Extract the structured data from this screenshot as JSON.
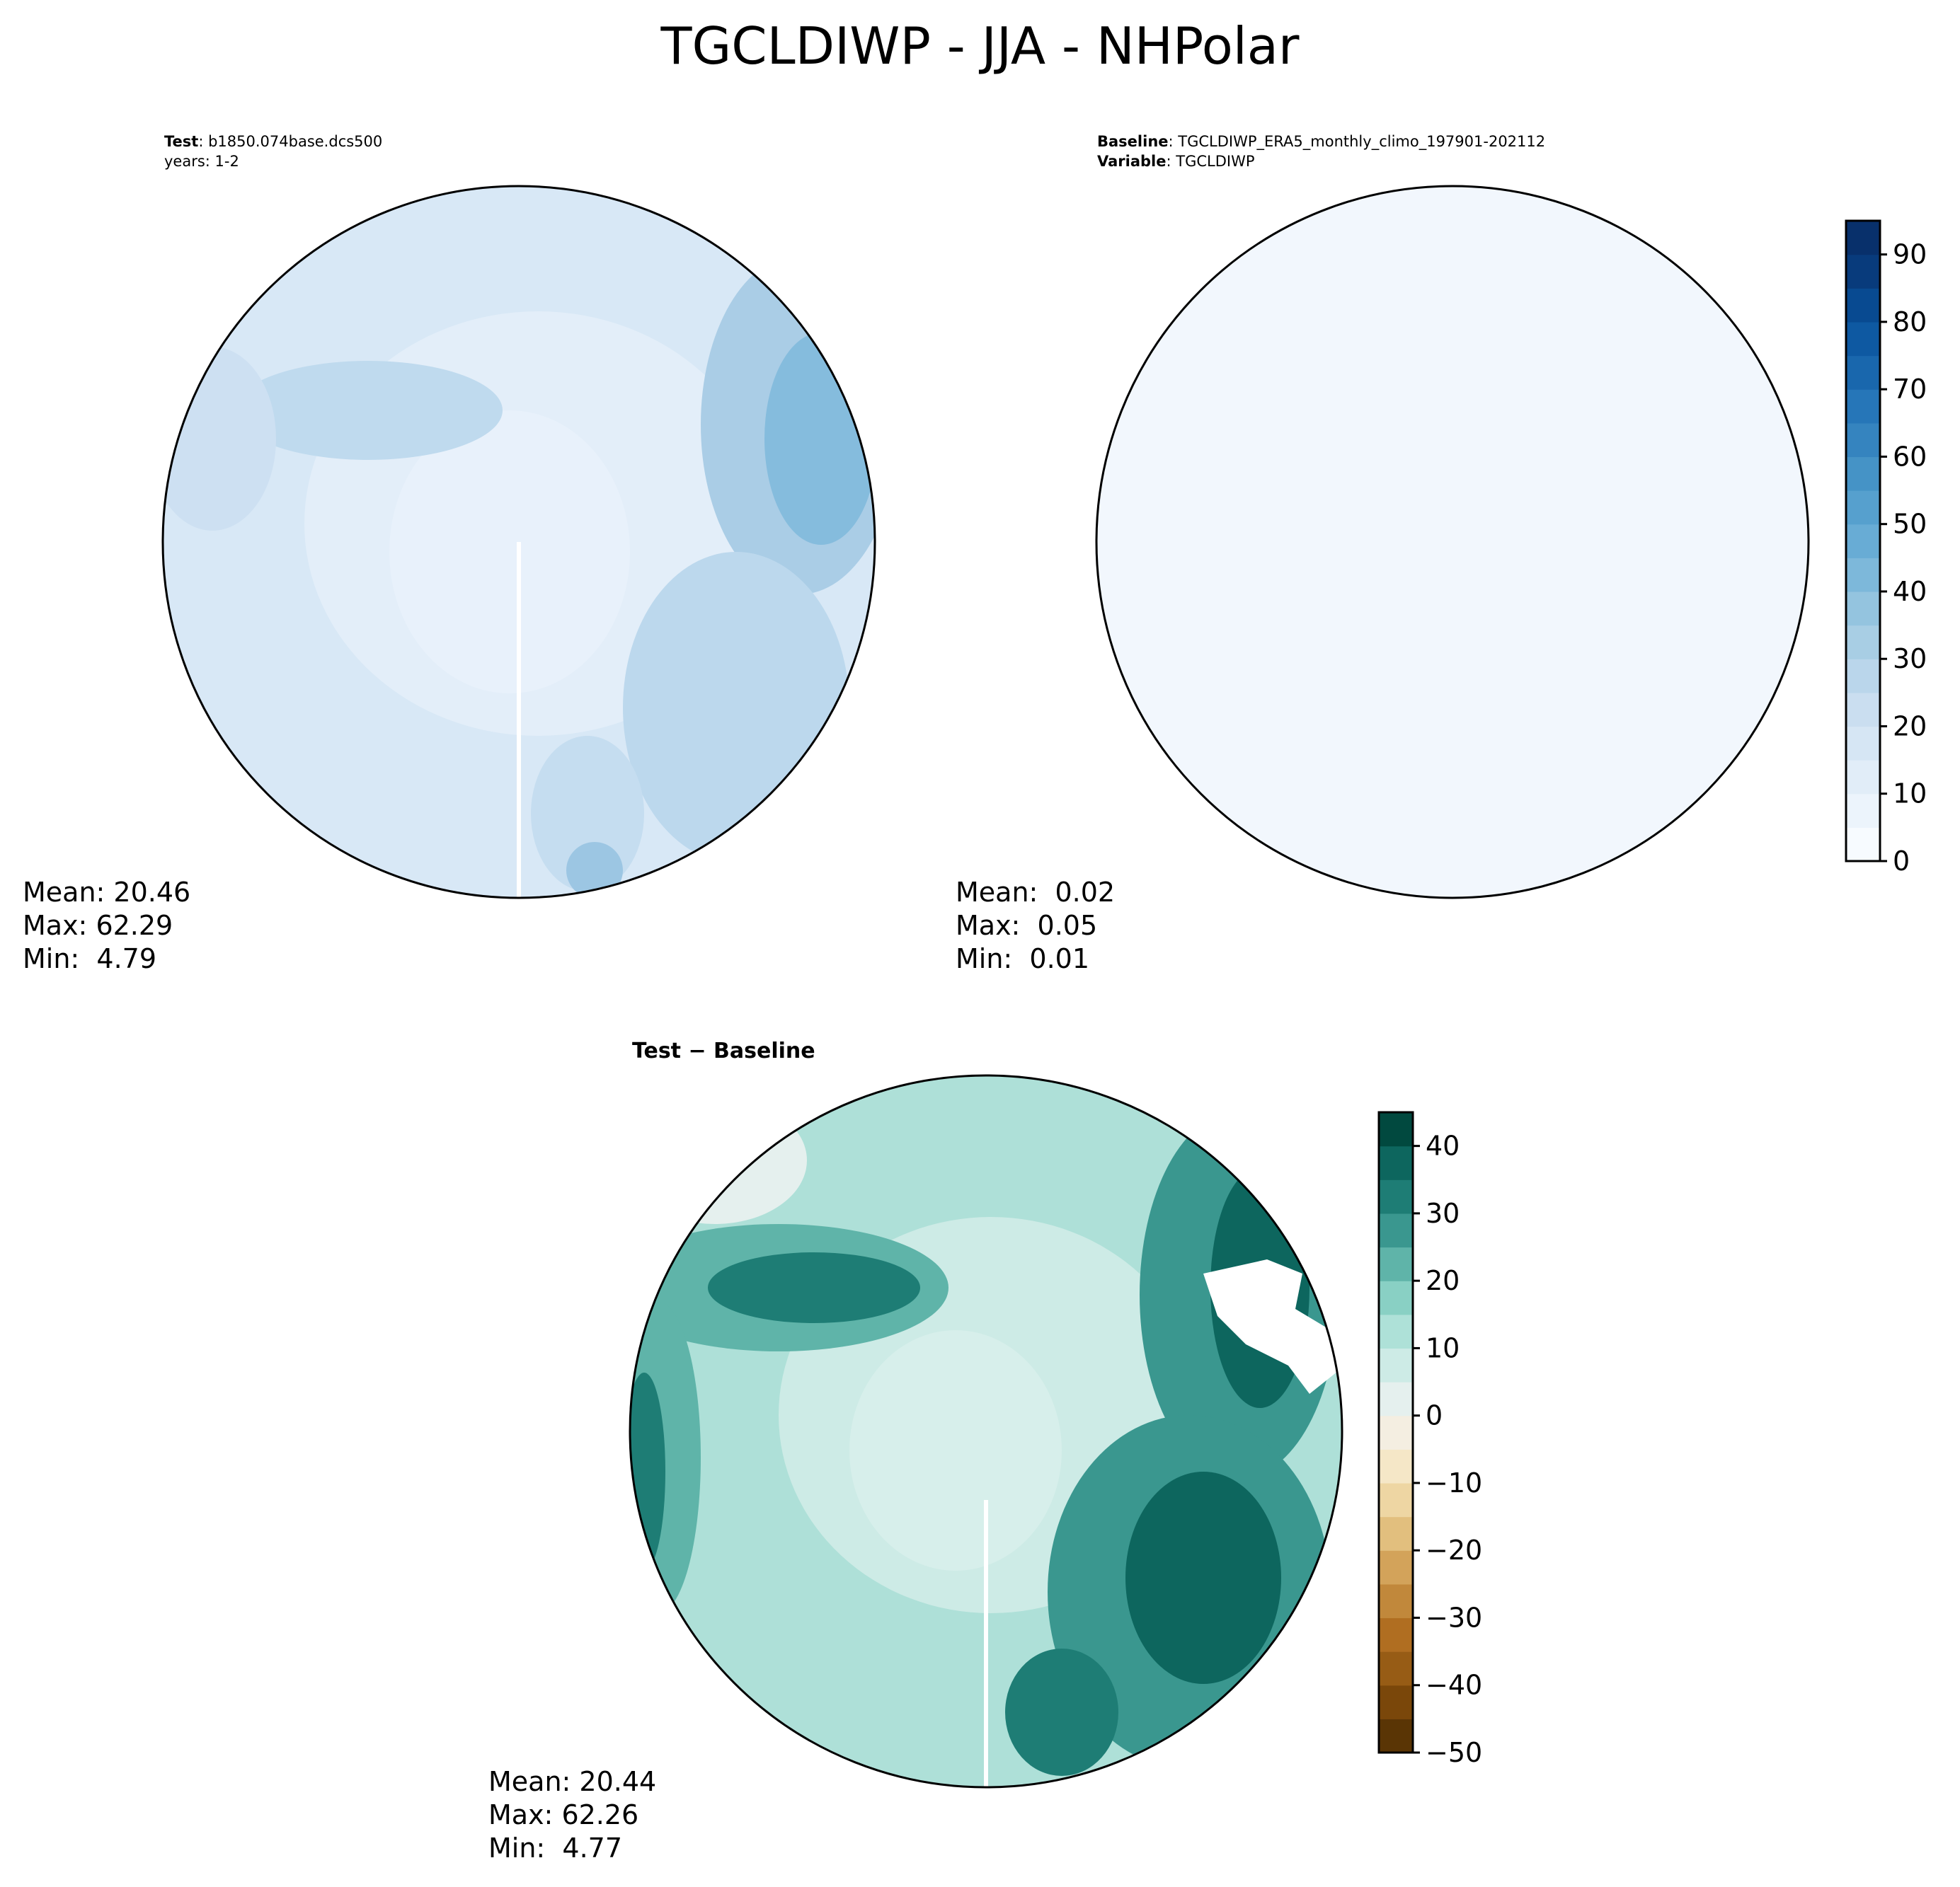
{
  "figure_title": "TGCLDIWP - JJA - NHPolar",
  "panels": {
    "test": {
      "label": "Test",
      "case": "b1850.074base.dcs500",
      "years": "years: 1-2",
      "stats": {
        "mean": "Mean: 20.46",
        "max": "Max: 62.29",
        "min": "Min:  4.79"
      }
    },
    "baseline": {
      "label": "Baseline",
      "case": "TGCLDIWP_ERA5_monthly_climo_197901-202112",
      "variable_label": "Variable",
      "variable": "TGCLDIWP",
      "stats": {
        "mean": "Mean:  0.02",
        "max": "Max:  0.05",
        "min": "Min:  0.01"
      }
    },
    "difference": {
      "title": "Test − Baseline",
      "stats": {
        "mean": "Mean: 20.44",
        "max": "Max: 62.26",
        "min": "Min:  4.77"
      }
    }
  },
  "chart_data": [
    {
      "type": "heatmap",
      "panel": "test",
      "projection": "north-polar-stereographic",
      "colormap": "Blues",
      "colorbar_ticks": [
        "0",
        "10",
        "20",
        "30",
        "40",
        "50",
        "60",
        "70",
        "80",
        "90"
      ],
      "colorbar_range": [
        0,
        95
      ],
      "colorbar_colors": [
        "#f7fbff",
        "#ecf4fc",
        "#e1edf8",
        "#d6e6f4",
        "#cadef0",
        "#bad6eb",
        "#a8cee4",
        "#94c4df",
        "#7db8da",
        "#68acd5",
        "#56a0ce",
        "#4593c6",
        "#3584bf",
        "#2676b8",
        "#1967ad",
        "#0e59a2",
        "#084a91",
        "#083b7c",
        "#08306b"
      ],
      "stats": {
        "mean": 20.46,
        "max": 62.29,
        "min": 4.79
      }
    },
    {
      "type": "heatmap",
      "panel": "baseline",
      "projection": "north-polar-stereographic",
      "colormap": "Blues",
      "colorbar_ticks": [
        "0",
        "10",
        "20",
        "30",
        "40",
        "50",
        "60",
        "70",
        "80",
        "90"
      ],
      "colorbar_range": [
        0,
        95
      ],
      "stats": {
        "mean": 0.02,
        "max": 0.05,
        "min": 0.01
      }
    },
    {
      "type": "heatmap",
      "panel": "difference",
      "projection": "north-polar-stereographic",
      "colormap": "BrBG",
      "colorbar_ticks": [
        "40",
        "30",
        "20",
        "10",
        "0",
        "−10",
        "−20",
        "−30",
        "−40",
        "−50"
      ],
      "colorbar_range": [
        -50,
        45
      ],
      "colorbar_colors": [
        "#5a3505",
        "#7a470a",
        "#975c15",
        "#b06e21",
        "#c1883b",
        "#d3a35a",
        "#e2bf7e",
        "#eed6a3",
        "#f5e7c7",
        "#f4eee1",
        "#e5f0ee",
        "#cdebe6",
        "#aee1d8",
        "#89d0c4",
        "#5fb4a9",
        "#3a978f",
        "#1e7d75",
        "#0d665e",
        "#01493f"
      ],
      "stats": {
        "mean": 20.44,
        "max": 62.26,
        "min": 4.77
      }
    }
  ]
}
